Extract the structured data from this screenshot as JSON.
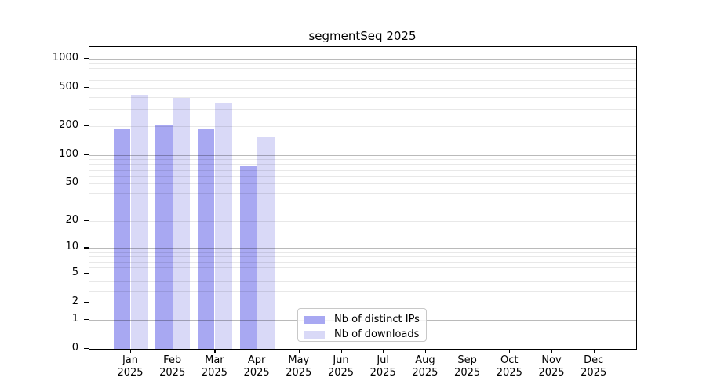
{
  "title": "segmentSeq 2025",
  "colors": {
    "distinct_ips_bar": "#a8a8f2",
    "downloads_bar": "#d9d9f7",
    "axis": "#000000",
    "grid_major": "#bababa",
    "grid_minor": "#e8e8e8",
    "legend_border": "#c8c8c8"
  },
  "chart_data": {
    "type": "bar",
    "title": "segmentSeq 2025",
    "categories": [
      "Jan",
      "Feb",
      "Mar",
      "Apr",
      "May",
      "Jun",
      "Jul",
      "Aug",
      "Sep",
      "Oct",
      "Nov",
      "Dec"
    ],
    "category_year": "2025",
    "series": [
      {
        "name": "Nb of distinct IPs",
        "color": "#a8a8f2",
        "values": [
          190,
          205,
          190,
          76,
          null,
          null,
          null,
          null,
          null,
          null,
          null,
          null
        ]
      },
      {
        "name": "Nb of downloads",
        "color": "#d9d9f7",
        "values": [
          420,
          390,
          345,
          152,
          null,
          null,
          null,
          null,
          null,
          null,
          null,
          null
        ]
      }
    ],
    "y_ticks": [
      0,
      1,
      2,
      5,
      10,
      20,
      50,
      100,
      200,
      500,
      1000
    ],
    "y_scale": "log10(1+v)",
    "ylim": [
      0,
      1320
    ],
    "xlabel": "",
    "ylabel": "",
    "grid": "on",
    "gridlines_over_bars": true,
    "legend_position": "lower-center"
  }
}
